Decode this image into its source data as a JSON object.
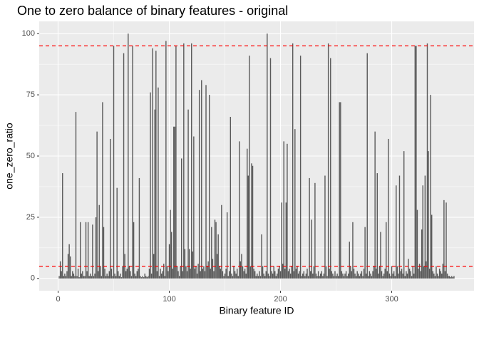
{
  "chart_data": {
    "type": "bar",
    "title": "One to zero balance of binary features - original",
    "x_label": "Binary feature ID",
    "y_label": "one_zero_ratio",
    "color": "#595959",
    "hlines": [
      95,
      5
    ],
    "hline_color": "#ff0000",
    "grid": true,
    "xlim": [
      -17,
      374
    ],
    "ylim": [
      -5,
      105
    ],
    "xticks": [
      0,
      100,
      200,
      300
    ],
    "yticks": [
      0,
      25,
      50,
      75,
      100
    ],
    "x": [
      1,
      2,
      3,
      4,
      5,
      6,
      7,
      8,
      9,
      10,
      11,
      12,
      13,
      14,
      15,
      16,
      17,
      18,
      19,
      20,
      21,
      22,
      23,
      24,
      25,
      26,
      27,
      28,
      29,
      30,
      31,
      32,
      33,
      34,
      35,
      36,
      37,
      38,
      39,
      40,
      41,
      42,
      43,
      44,
      45,
      46,
      47,
      48,
      49,
      50,
      51,
      52,
      53,
      54,
      55,
      56,
      57,
      58,
      59,
      60,
      61,
      62,
      63,
      64,
      65,
      66,
      67,
      68,
      69,
      70,
      71,
      72,
      73,
      74,
      75,
      76,
      77,
      78,
      79,
      80,
      81,
      82,
      83,
      84,
      85,
      86,
      87,
      88,
      89,
      90,
      91,
      92,
      93,
      94,
      95,
      96,
      97,
      98,
      99,
      100,
      101,
      102,
      103,
      104,
      105,
      106,
      107,
      108,
      109,
      110,
      111,
      112,
      113,
      114,
      115,
      116,
      117,
      118,
      119,
      120,
      121,
      122,
      123,
      124,
      125,
      126,
      127,
      128,
      129,
      130,
      131,
      132,
      133,
      134,
      135,
      136,
      137,
      138,
      139,
      140,
      141,
      142,
      143,
      144,
      145,
      146,
      147,
      148,
      149,
      150,
      151,
      152,
      153,
      154,
      155,
      156,
      157,
      158,
      159,
      160,
      161,
      162,
      163,
      164,
      165,
      166,
      167,
      168,
      169,
      170,
      171,
      172,
      173,
      174,
      175,
      176,
      177,
      178,
      179,
      180,
      181,
      182,
      183,
      184,
      185,
      186,
      187,
      188,
      189,
      190,
      191,
      192,
      193,
      194,
      195,
      196,
      197,
      198,
      199,
      200,
      201,
      202,
      203,
      204,
      205,
      206,
      207,
      208,
      209,
      210,
      211,
      212,
      213,
      214,
      215,
      216,
      217,
      218,
      219,
      220,
      221,
      222,
      223,
      224,
      225,
      226,
      227,
      228,
      229,
      230,
      231,
      232,
      233,
      234,
      235,
      236,
      237,
      238,
      239,
      240,
      241,
      242,
      243,
      244,
      245,
      246,
      247,
      248,
      249,
      250,
      251,
      252,
      253,
      254,
      255,
      256,
      257,
      258,
      259,
      260,
      261,
      262,
      263,
      264,
      265,
      266,
      267,
      268,
      269,
      270,
      271,
      272,
      273,
      274,
      275,
      276,
      277,
      278,
      279,
      280,
      281,
      282,
      283,
      284,
      285,
      286,
      287,
      288,
      289,
      290,
      291,
      292,
      293,
      294,
      295,
      296,
      297,
      298,
      299,
      300,
      301,
      302,
      303,
      304,
      305,
      306,
      307,
      308,
      309,
      310,
      311,
      312,
      313,
      314,
      315,
      316,
      317,
      318,
      319,
      320,
      321,
      322,
      323,
      324,
      325,
      326,
      327,
      328,
      329,
      330,
      331,
      332,
      333,
      334,
      335,
      336,
      337,
      338,
      339,
      340,
      341,
      342,
      343,
      344,
      345,
      346,
      347,
      348,
      349,
      350,
      351,
      352,
      353,
      354,
      355,
      356
    ],
    "values": [
      1,
      7,
      3,
      43,
      1,
      2,
      1,
      3,
      10,
      14,
      9,
      1,
      3,
      2,
      1,
      68,
      1,
      4,
      0.5,
      23,
      2,
      3,
      1,
      1,
      23,
      3,
      23,
      1,
      2,
      1,
      22,
      1,
      2,
      25,
      60,
      3,
      30,
      5,
      1,
      72,
      21,
      4,
      1,
      2,
      1,
      3,
      57,
      4,
      1,
      95,
      2,
      1,
      37,
      3,
      1,
      2,
      0.5,
      5,
      92,
      10,
      3,
      4,
      100,
      5,
      3,
      1,
      95,
      23,
      2,
      1,
      3,
      4,
      41,
      1,
      0.5,
      1,
      0.5,
      2,
      1,
      0.5,
      1,
      4,
      76,
      2,
      94,
      10,
      69,
      93,
      3,
      78,
      1,
      4,
      2,
      3,
      6,
      1,
      97,
      5,
      3,
      14,
      28,
      19,
      4,
      62,
      62,
      95,
      5,
      3,
      1,
      5,
      49,
      3,
      96,
      12,
      5,
      3,
      69,
      12,
      4,
      96,
      11,
      58,
      4,
      5,
      2,
      6,
      77,
      3,
      81,
      4,
      5,
      3,
      79,
      5,
      7,
      75,
      4,
      21,
      8,
      3,
      24,
      23,
      10,
      18,
      5,
      4,
      30,
      3,
      1,
      2,
      4,
      27,
      1,
      3,
      66,
      2,
      1,
      5,
      3,
      2,
      4,
      1,
      56,
      7,
      10,
      5,
      3,
      4,
      2,
      53,
      42,
      91,
      5,
      47,
      46,
      4,
      3,
      1,
      2,
      1,
      3,
      1,
      18,
      5,
      2,
      1,
      3,
      100,
      2,
      1,
      90,
      3,
      2,
      5,
      3,
      1,
      2,
      4,
      5,
      3,
      31,
      6,
      56,
      4,
      31,
      55,
      3,
      4,
      2,
      5,
      96,
      3,
      61,
      4,
      5,
      2,
      3,
      91,
      1,
      2,
      3,
      1,
      2,
      4,
      1,
      41,
      3,
      24,
      2,
      5,
      39,
      2,
      1,
      3,
      1,
      2,
      3,
      1,
      2,
      42,
      5,
      1,
      96,
      4,
      90,
      3,
      2,
      1,
      3,
      1,
      2,
      1,
      72,
      72,
      3,
      2,
      1,
      2,
      3,
      1,
      2,
      15,
      5,
      3,
      23,
      4,
      2,
      1,
      3,
      2,
      1,
      2,
      3,
      1,
      4,
      21,
      2,
      92,
      1,
      3,
      2,
      1,
      3,
      5,
      60,
      4,
      43,
      2,
      5,
      19,
      3,
      1,
      2,
      4,
      23,
      3,
      57,
      2,
      1,
      5,
      2,
      3,
      1,
      38,
      5,
      2,
      42,
      3,
      4,
      2,
      52,
      1,
      3,
      2,
      8,
      4,
      3,
      1,
      5,
      2,
      95,
      95,
      28,
      4,
      6,
      3,
      20,
      38,
      5,
      42,
      7,
      96,
      52,
      4,
      75,
      26,
      3,
      2,
      1,
      5,
      2,
      1,
      4,
      3,
      2,
      6,
      32,
      3,
      31,
      2,
      1,
      1,
      0.5,
      1,
      0.5,
      1
    ]
  }
}
